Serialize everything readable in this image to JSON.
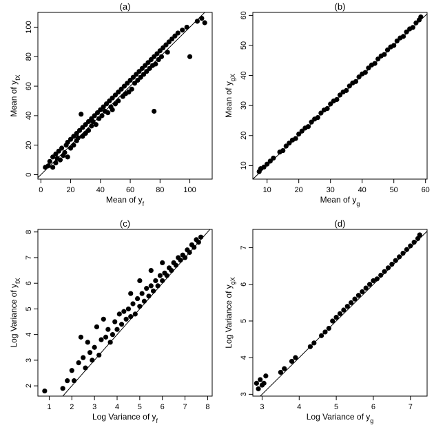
{
  "chart_data": [
    {
      "type": "scatter",
      "title": "(a)",
      "xlabel": {
        "main": "Mean of y",
        "sub": "f"
      },
      "ylabel": {
        "main": "Mean of y",
        "sub": "fX"
      },
      "xlim": [
        -2,
        115
      ],
      "ylim": [
        -3,
        110
      ],
      "xticks": [
        0,
        20,
        40,
        60,
        80,
        100
      ],
      "yticks": [
        0,
        20,
        40,
        60,
        80,
        100
      ],
      "grid": false,
      "reference_line": {
        "slope": 1,
        "intercept": 0
      },
      "series": [
        {
          "points": [
            [
              3,
              5
            ],
            [
              5,
              6
            ],
            [
              6,
              9
            ],
            [
              8,
              5
            ],
            [
              8,
              12
            ],
            [
              10,
              8
            ],
            [
              10,
              14
            ],
            [
              11,
              11
            ],
            [
              12,
              16
            ],
            [
              13,
              10
            ],
            [
              14,
              18
            ],
            [
              15,
              13
            ],
            [
              16,
              15
            ],
            [
              17,
              20
            ],
            [
              18,
              22
            ],
            [
              18,
              12
            ],
            [
              20,
              18
            ],
            [
              20,
              24
            ],
            [
              22,
              20
            ],
            [
              22,
              26
            ],
            [
              24,
              23
            ],
            [
              24,
              28
            ],
            [
              25,
              25
            ],
            [
              26,
              30
            ],
            [
              27,
              41
            ],
            [
              28,
              26
            ],
            [
              28,
              32
            ],
            [
              30,
              28
            ],
            [
              30,
              34
            ],
            [
              32,
              30
            ],
            [
              32,
              36
            ],
            [
              34,
              33
            ],
            [
              34,
              38
            ],
            [
              35,
              36
            ],
            [
              36,
              40
            ],
            [
              37,
              34
            ],
            [
              38,
              42
            ],
            [
              39,
              38
            ],
            [
              40,
              44
            ],
            [
              41,
              40
            ],
            [
              42,
              46
            ],
            [
              43,
              43
            ],
            [
              44,
              48
            ],
            [
              45,
              42
            ],
            [
              46,
              50
            ],
            [
              47,
              46
            ],
            [
              48,
              52
            ],
            [
              48,
              44
            ],
            [
              50,
              54
            ],
            [
              50,
              48
            ],
            [
              52,
              56
            ],
            [
              52,
              50
            ],
            [
              54,
              58
            ],
            [
              55,
              53
            ],
            [
              56,
              60
            ],
            [
              57,
              55
            ],
            [
              58,
              62
            ],
            [
              59,
              56
            ],
            [
              60,
              64
            ],
            [
              61,
              58
            ],
            [
              62,
              66
            ],
            [
              63,
              62
            ],
            [
              64,
              68
            ],
            [
              65,
              64
            ],
            [
              66,
              70
            ],
            [
              67,
              66
            ],
            [
              68,
              72
            ],
            [
              69,
              68
            ],
            [
              70,
              74
            ],
            [
              71,
              70
            ],
            [
              72,
              76
            ],
            [
              73,
              72
            ],
            [
              74,
              78
            ],
            [
              75,
              74
            ],
            [
              76,
              80
            ],
            [
              77,
              75
            ],
            [
              78,
              82
            ],
            [
              79,
              78
            ],
            [
              80,
              84
            ],
            [
              81,
              80
            ],
            [
              82,
              86
            ],
            [
              84,
              88
            ],
            [
              85,
              83
            ],
            [
              86,
              90
            ],
            [
              88,
              92
            ],
            [
              90,
              94
            ],
            [
              92,
              96
            ],
            [
              95,
              98
            ],
            [
              98,
              100
            ],
            [
              100,
              80
            ],
            [
              105,
              104
            ],
            [
              108,
              106
            ],
            [
              110,
              103
            ],
            [
              76,
              43
            ]
          ]
        }
      ]
    },
    {
      "type": "scatter",
      "title": "(b)",
      "xlabel": {
        "main": "Mean of y",
        "sub": "g"
      },
      "ylabel": {
        "main": "Mean of y",
        "sub": "gX"
      },
      "xlim": [
        5.5,
        60.5
      ],
      "ylim": [
        5.5,
        61
      ],
      "xticks": [
        10,
        20,
        30,
        40,
        50,
        60
      ],
      "yticks": [
        10,
        20,
        30,
        40,
        50,
        60
      ],
      "grid": false,
      "reference_line": {
        "slope": 1,
        "intercept": 0
      },
      "series": [
        {
          "points": [
            [
              7.5,
              8
            ],
            [
              8,
              9
            ],
            [
              9,
              9.5
            ],
            [
              10,
              10.5
            ],
            [
              11,
              11.5
            ],
            [
              12,
              12.5
            ],
            [
              14,
              14.5
            ],
            [
              15,
              15
            ],
            [
              16,
              16.5
            ],
            [
              17,
              17.5
            ],
            [
              18,
              18.5
            ],
            [
              19,
              19
            ],
            [
              20,
              20.5
            ],
            [
              21,
              21.5
            ],
            [
              22,
              22.5
            ],
            [
              23,
              23
            ],
            [
              24,
              24.5
            ],
            [
              25,
              25.5
            ],
            [
              26,
              26
            ],
            [
              27,
              27.5
            ],
            [
              28,
              28.5
            ],
            [
              29,
              29
            ],
            [
              30,
              30.5
            ],
            [
              31,
              31.5
            ],
            [
              32,
              32
            ],
            [
              33,
              33.5
            ],
            [
              34,
              34.5
            ],
            [
              35,
              35
            ],
            [
              36,
              36.5
            ],
            [
              37,
              37.5
            ],
            [
              38,
              38
            ],
            [
              39,
              39.5
            ],
            [
              40,
              40.5
            ],
            [
              41,
              41
            ],
            [
              42,
              42.5
            ],
            [
              43,
              43.5
            ],
            [
              44,
              44
            ],
            [
              45,
              45.5
            ],
            [
              46,
              46.5
            ],
            [
              47,
              47
            ],
            [
              48,
              48.5
            ],
            [
              49,
              49.5
            ],
            [
              50,
              50
            ],
            [
              51,
              51.5
            ],
            [
              52,
              52.5
            ],
            [
              53,
              53
            ],
            [
              54,
              54.5
            ],
            [
              55,
              55.5
            ],
            [
              56,
              56
            ],
            [
              57,
              57.5
            ],
            [
              58,
              58.5
            ],
            [
              58.5,
              59.5
            ]
          ]
        }
      ]
    },
    {
      "type": "scatter",
      "title": "(c)",
      "xlabel": {
        "main": "Log Variance of y",
        "sub": "f"
      },
      "ylabel": {
        "main": "Log Variance of y",
        "sub": "fX"
      },
      "xlim": [
        0.5,
        8.2
      ],
      "ylim": [
        1.6,
        8.1
      ],
      "xticks": [
        1,
        2,
        3,
        4,
        5,
        6,
        7,
        8
      ],
      "yticks": [
        2,
        3,
        4,
        5,
        6,
        7,
        8
      ],
      "grid": false,
      "reference_line": {
        "slope": 1,
        "intercept": 0
      },
      "series": [
        {
          "points": [
            [
              0.8,
              1.8
            ],
            [
              1.6,
              1.9
            ],
            [
              1.8,
              2.2
            ],
            [
              2.0,
              2.6
            ],
            [
              2.1,
              2.2
            ],
            [
              2.3,
              2.9
            ],
            [
              2.4,
              3.9
            ],
            [
              2.5,
              3.1
            ],
            [
              2.6,
              2.7
            ],
            [
              2.7,
              3.7
            ],
            [
              2.8,
              3.3
            ],
            [
              2.9,
              3.0
            ],
            [
              3.0,
              3.5
            ],
            [
              3.1,
              4.3
            ],
            [
              3.2,
              3.2
            ],
            [
              3.3,
              3.8
            ],
            [
              3.4,
              4.6
            ],
            [
              3.5,
              3.9
            ],
            [
              3.6,
              4.2
            ],
            [
              3.7,
              3.7
            ],
            [
              3.8,
              4.0
            ],
            [
              3.9,
              4.5
            ],
            [
              4.0,
              4.2
            ],
            [
              4.1,
              4.8
            ],
            [
              4.2,
              4.4
            ],
            [
              4.3,
              4.9
            ],
            [
              4.4,
              4.6
            ],
            [
              4.5,
              5.0
            ],
            [
              4.6,
              4.7
            ],
            [
              4.7,
              5.2
            ],
            [
              4.8,
              4.8
            ],
            [
              4.9,
              5.4
            ],
            [
              5.0,
              5.1
            ],
            [
              5.1,
              5.6
            ],
            [
              5.2,
              5.3
            ],
            [
              5.3,
              5.8
            ],
            [
              5.4,
              5.5
            ],
            [
              5.5,
              5.9
            ],
            [
              5.6,
              5.7
            ],
            [
              5.7,
              6.1
            ],
            [
              5.8,
              5.9
            ],
            [
              5.9,
              6.3
            ],
            [
              6.0,
              6.1
            ],
            [
              6.1,
              6.4
            ],
            [
              6.2,
              6.3
            ],
            [
              6.3,
              6.6
            ],
            [
              6.4,
              6.5
            ],
            [
              6.5,
              6.8
            ],
            [
              6.6,
              6.7
            ],
            [
              6.7,
              7.0
            ],
            [
              6.8,
              6.9
            ],
            [
              6.9,
              7.1
            ],
            [
              7.0,
              7.0
            ],
            [
              7.1,
              7.3
            ],
            [
              7.2,
              7.2
            ],
            [
              7.3,
              7.5
            ],
            [
              7.4,
              7.4
            ],
            [
              7.5,
              7.7
            ],
            [
              7.6,
              7.6
            ],
            [
              7.7,
              7.8
            ],
            [
              5.0,
              6.1
            ],
            [
              5.5,
              6.5
            ],
            [
              4.6,
              5.6
            ],
            [
              6.0,
              6.8
            ]
          ]
        }
      ]
    },
    {
      "type": "scatter",
      "title": "(d)",
      "xlabel": {
        "main": "Log Variance of y",
        "sub": "g"
      },
      "ylabel": {
        "main": "Log Variance of y",
        "sub": "gX"
      },
      "xlim": [
        2.75,
        7.45
      ],
      "ylim": [
        2.95,
        7.5
      ],
      "xticks": [
        3,
        4,
        5,
        6,
        7
      ],
      "yticks": [
        3,
        4,
        5,
        6,
        7
      ],
      "grid": false,
      "reference_line": {
        "slope": 1,
        "intercept": 0
      },
      "series": [
        {
          "points": [
            [
              2.85,
              3.3
            ],
            [
              2.9,
              3.15
            ],
            [
              2.95,
              3.4
            ],
            [
              3.0,
              3.25
            ],
            [
              3.05,
              3.3
            ],
            [
              3.1,
              3.5
            ],
            [
              3.5,
              3.6
            ],
            [
              3.6,
              3.7
            ],
            [
              3.8,
              3.9
            ],
            [
              3.9,
              4.0
            ],
            [
              4.3,
              4.3
            ],
            [
              4.4,
              4.4
            ],
            [
              4.6,
              4.6
            ],
            [
              4.7,
              4.7
            ],
            [
              4.8,
              4.8
            ],
            [
              4.9,
              5.0
            ],
            [
              5.0,
              5.1
            ],
            [
              5.1,
              5.2
            ],
            [
              5.2,
              5.3
            ],
            [
              5.3,
              5.4
            ],
            [
              5.4,
              5.5
            ],
            [
              5.5,
              5.6
            ],
            [
              5.6,
              5.7
            ],
            [
              5.7,
              5.8
            ],
            [
              5.8,
              5.9
            ],
            [
              5.9,
              6.0
            ],
            [
              6.0,
              6.1
            ],
            [
              6.1,
              6.15
            ],
            [
              6.2,
              6.25
            ],
            [
              6.3,
              6.35
            ],
            [
              6.4,
              6.45
            ],
            [
              6.5,
              6.55
            ],
            [
              6.6,
              6.65
            ],
            [
              6.7,
              6.75
            ],
            [
              6.8,
              6.85
            ],
            [
              6.9,
              6.95
            ],
            [
              7.0,
              7.05
            ],
            [
              7.1,
              7.15
            ],
            [
              7.2,
              7.25
            ],
            [
              7.25,
              7.35
            ]
          ]
        }
      ]
    }
  ]
}
